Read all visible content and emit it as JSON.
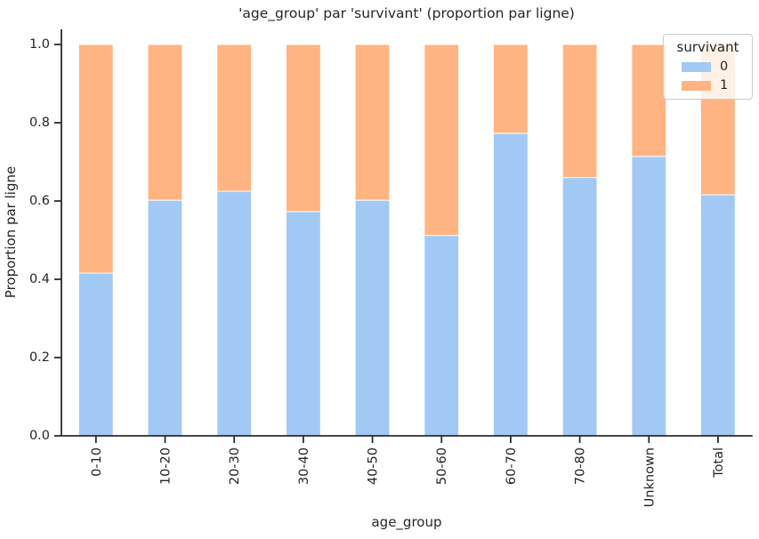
{
  "chart_data": {
    "type": "bar",
    "stacked": true,
    "title": "'age_group' par 'survivant' (proportion par ligne)",
    "xlabel": "age_group",
    "ylabel": "Proportion par ligne",
    "categories": [
      "0-10",
      "10-20",
      "20-30",
      "30-40",
      "40-50",
      "50-60",
      "60-70",
      "70-80",
      "Unknown",
      "Total"
    ],
    "series": [
      {
        "name": "0",
        "color": "#a1c9f4",
        "values": [
          0.416,
          0.602,
          0.625,
          0.573,
          0.602,
          0.512,
          0.773,
          0.66,
          0.714,
          0.616
        ]
      },
      {
        "name": "1",
        "color": "#ffb482",
        "values": [
          0.584,
          0.398,
          0.375,
          0.427,
          0.398,
          0.488,
          0.227,
          0.34,
          0.286,
          0.384
        ]
      }
    ],
    "ylim": [
      0.0,
      1.04
    ],
    "y_ticks": [
      "0.0",
      "0.2",
      "0.4",
      "0.6",
      "0.8",
      "1.0"
    ],
    "grid": false,
    "legend": {
      "title": "survivant",
      "position": "upper right",
      "entries": [
        {
          "label": "0",
          "color": "#a1c9f4"
        },
        {
          "label": "1",
          "color": "#ffb482"
        }
      ]
    }
  },
  "colors": {
    "axis": "#2b2b2b",
    "text": "#262626",
    "bar_edge": "#ffffff",
    "background": "#ffffff",
    "legend_border": "#cccccc"
  }
}
